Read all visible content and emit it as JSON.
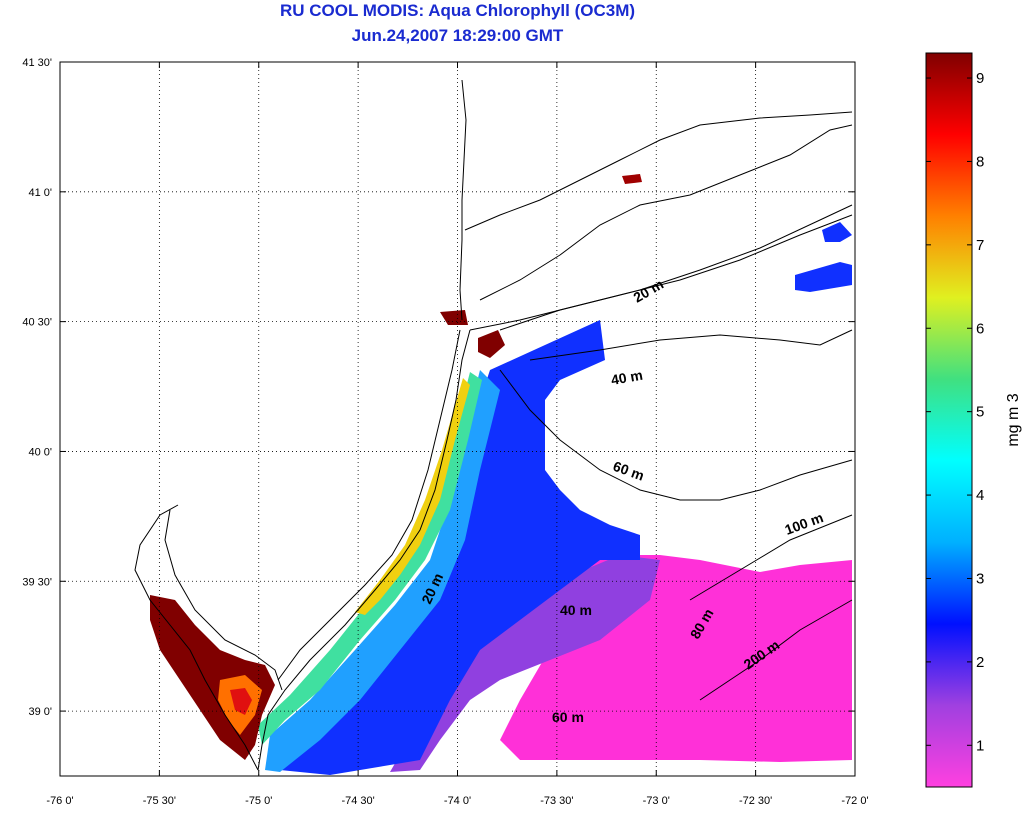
{
  "title": "RU COOL MODIS: Aqua Chlorophyll (OC3M)",
  "subtitle": "Jun.24,2007 18:29:00 GMT",
  "map": {
    "lon_range": [
      -76,
      -72
    ],
    "lat_range": [
      38.75,
      41.5
    ],
    "x_ticks": [
      "-76 0'",
      "-75 30'",
      "-75 0'",
      "-74 30'",
      "-74 0'",
      "-73 30'",
      "-73 0'",
      "-72 30'",
      "-72 0'"
    ],
    "y_ticks": [
      "41 30'",
      "41 0'",
      "40 30'",
      "40 0'",
      "39 30'",
      "39 0'"
    ],
    "gridlines": true,
    "isobath_labels": [
      "20 m",
      "40 m",
      "60 m",
      "100 m",
      "20 m",
      "40 m",
      "80 m",
      "200 m",
      "60 m"
    ]
  },
  "colorbar": {
    "label": "mg m 3",
    "ticks": [
      "1",
      "2",
      "3",
      "4",
      "5",
      "6",
      "7",
      "8",
      "9"
    ],
    "range": [
      0.5,
      9.3
    ],
    "colors": [
      "#ff40e0",
      "#a040e0",
      "#0010ff",
      "#00b0ff",
      "#00ffff",
      "#40e080",
      "#e0f020",
      "#ff8000",
      "#ff0000",
      "#800000"
    ]
  }
}
